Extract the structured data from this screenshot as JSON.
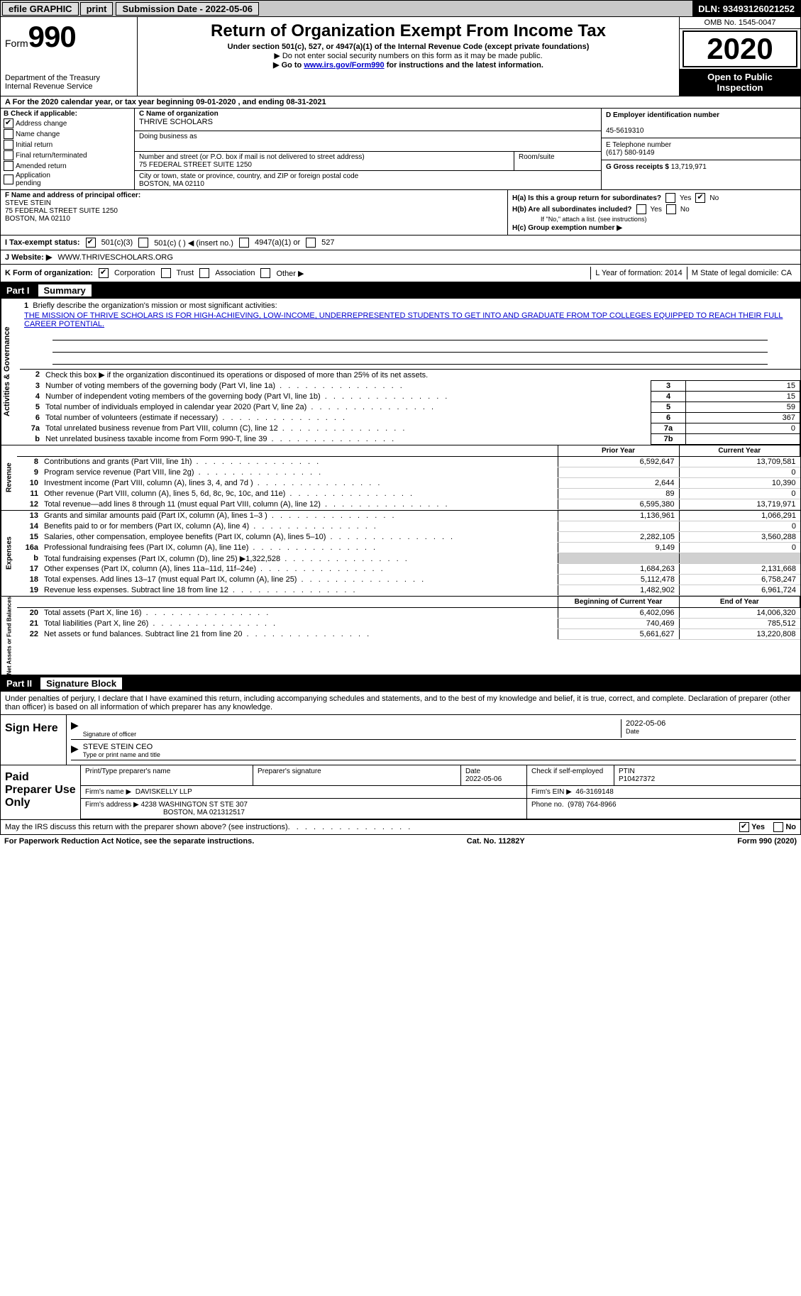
{
  "topbar": {
    "efile": "efile GRAPHIC",
    "print": "print",
    "submission_label": "Submission Date - 2022-05-06",
    "dln": "DLN: 93493126021252"
  },
  "header": {
    "form_word": "Form",
    "form_num": "990",
    "dept1": "Department of the Treasury",
    "dept2": "Internal Revenue Service",
    "title": "Return of Organization Exempt From Income Tax",
    "sub1": "Under section 501(c), 527, or 4947(a)(1) of the Internal Revenue Code (except private foundations)",
    "sub2": "▶ Do not enter social security numbers on this form as it may be made public.",
    "sub3a": "▶ Go to ",
    "sub3_link": "www.irs.gov/Form990",
    "sub3b": " for instructions and the latest information.",
    "omb": "OMB No. 1545-0047",
    "year": "2020",
    "open1": "Open to Public",
    "open2": "Inspection"
  },
  "row_a": "For the 2020 calendar year, or tax year beginning 09-01-2020   , and ending 08-31-2021",
  "col_b": {
    "hdr": "B Check if applicable:",
    "addr_change": "Address change",
    "name_change": "Name change",
    "initial": "Initial return",
    "final": "Final return/terminated",
    "amended": "Amended return",
    "app_pending1": "Application",
    "app_pending2": "pending"
  },
  "col_c": {
    "name_lbl": "C Name of organization",
    "name_val": "THRIVE SCHOLARS",
    "dba_lbl": "Doing business as",
    "addr_lbl": "Number and street (or P.O. box if mail is not delivered to street address)",
    "addr_val": "75 FEDERAL STREET SUITE 1250",
    "room_lbl": "Room/suite",
    "city_lbl": "City or town, state or province, country, and ZIP or foreign postal code",
    "city_val": "BOSTON, MA  02110"
  },
  "col_de": {
    "d_lbl": "D Employer identification number",
    "d_val": "45-5619310",
    "e_lbl": "E Telephone number",
    "e_val": "(617) 580-9149",
    "g_lbl": "G Gross receipts $ ",
    "g_val": "13,719,971"
  },
  "row_f": {
    "lbl": "F Name and address of principal officer:",
    "name": "STEVE STEIN",
    "addr": "75 FEDERAL STREET SUITE 1250",
    "city": "BOSTON, MA  02110"
  },
  "row_h": {
    "ha": "H(a)  Is this a group return for subordinates?",
    "hb": "H(b)  Are all subordinates included?",
    "hb_note": "If \"No,\" attach a list. (see instructions)",
    "hc": "H(c)  Group exemption number ▶",
    "yes": "Yes",
    "no": "No"
  },
  "row_i": {
    "lbl": "I   Tax-exempt status:",
    "o1": "501(c)(3)",
    "o2": "501(c) (  ) ◀ (insert no.)",
    "o3": "4947(a)(1) or",
    "o4": "527"
  },
  "row_j": {
    "lbl": "J   Website: ▶",
    "val": "WWW.THRIVESCHOLARS.ORG"
  },
  "row_k": {
    "lbl": "K Form of organization:",
    "corp": "Corporation",
    "trust": "Trust",
    "assoc": "Association",
    "other": "Other ▶",
    "l": "L Year of formation: 2014",
    "m": "M State of legal domicile: CA"
  },
  "part1": {
    "pn": "Part I",
    "pt": "Summary",
    "side_ag": "Activities & Governance",
    "line1": "Briefly describe the organization's mission or most significant activities:",
    "mission": "THE MISSION OF THRIVE SCHOLARS IS FOR HIGH-ACHIEVING, LOW-INCOME, UNDERREPRESENTED STUDENTS TO GET INTO AND GRADUATE FROM TOP COLLEGES EQUIPPED TO REACH THEIR FULL CAREER POTENTIAL.",
    "line2": "Check this box ▶       if the organization discontinued its operations or disposed of more than 25% of its net assets.",
    "rows_ag": [
      {
        "n": "3",
        "d": "Number of voting members of the governing body (Part VI, line 1a)",
        "b": "3",
        "v": "15"
      },
      {
        "n": "4",
        "d": "Number of independent voting members of the governing body (Part VI, line 1b)",
        "b": "4",
        "v": "15"
      },
      {
        "n": "5",
        "d": "Total number of individuals employed in calendar year 2020 (Part V, line 2a)",
        "b": "5",
        "v": "59"
      },
      {
        "n": "6",
        "d": "Total number of volunteers (estimate if necessary)",
        "b": "6",
        "v": "367"
      },
      {
        "n": "7a",
        "d": "Total unrelated business revenue from Part VIII, column (C), line 12",
        "b": "7a",
        "v": "0"
      },
      {
        "n": "b",
        "d": "Net unrelated business taxable income from Form 990-T, line 39",
        "b": "7b",
        "v": ""
      }
    ],
    "hdr_py": "Prior Year",
    "hdr_cy": "Current Year",
    "side_rev": "Revenue",
    "rows_rev": [
      {
        "n": "8",
        "d": "Contributions and grants (Part VIII, line 1h)",
        "py": "6,592,647",
        "cy": "13,709,581"
      },
      {
        "n": "9",
        "d": "Program service revenue (Part VIII, line 2g)",
        "py": "",
        "cy": "0"
      },
      {
        "n": "10",
        "d": "Investment income (Part VIII, column (A), lines 3, 4, and 7d )",
        "py": "2,644",
        "cy": "10,390"
      },
      {
        "n": "11",
        "d": "Other revenue (Part VIII, column (A), lines 5, 6d, 8c, 9c, 10c, and 11e)",
        "py": "89",
        "cy": "0"
      },
      {
        "n": "12",
        "d": "Total revenue—add lines 8 through 11 (must equal Part VIII, column (A), line 12)",
        "py": "6,595,380",
        "cy": "13,719,971"
      }
    ],
    "side_exp": "Expenses",
    "rows_exp": [
      {
        "n": "13",
        "d": "Grants and similar amounts paid (Part IX, column (A), lines 1–3 )",
        "py": "1,136,961",
        "cy": "1,066,291"
      },
      {
        "n": "14",
        "d": "Benefits paid to or for members (Part IX, column (A), line 4)",
        "py": "",
        "cy": "0"
      },
      {
        "n": "15",
        "d": "Salaries, other compensation, employee benefits (Part IX, column (A), lines 5–10)",
        "py": "2,282,105",
        "cy": "3,560,288"
      },
      {
        "n": "16a",
        "d": "Professional fundraising fees (Part IX, column (A), line 11e)",
        "py": "9,149",
        "cy": "0"
      },
      {
        "n": "b",
        "d": "Total fundraising expenses (Part IX, column (D), line 25) ▶1,322,528",
        "py": "shade",
        "cy": "shade"
      },
      {
        "n": "17",
        "d": "Other expenses (Part IX, column (A), lines 11a–11d, 11f–24e)",
        "py": "1,684,263",
        "cy": "2,131,668"
      },
      {
        "n": "18",
        "d": "Total expenses. Add lines 13–17 (must equal Part IX, column (A), line 25)",
        "py": "5,112,478",
        "cy": "6,758,247"
      },
      {
        "n": "19",
        "d": "Revenue less expenses. Subtract line 18 from line 12",
        "py": "1,482,902",
        "cy": "6,961,724"
      }
    ],
    "hdr_boy": "Beginning of Current Year",
    "hdr_eoy": "End of Year",
    "side_na": "Net Assets or Fund Balances",
    "rows_na": [
      {
        "n": "20",
        "d": "Total assets (Part X, line 16)",
        "py": "6,402,096",
        "cy": "14,006,320"
      },
      {
        "n": "21",
        "d": "Total liabilities (Part X, line 26)",
        "py": "740,469",
        "cy": "785,512"
      },
      {
        "n": "22",
        "d": "Net assets or fund balances. Subtract line 21 from line 20",
        "py": "5,661,627",
        "cy": "13,220,808"
      }
    ]
  },
  "part2": {
    "pn": "Part II",
    "pt": "Signature Block",
    "penalty": "Under penalties of perjury, I declare that I have examined this return, including accompanying schedules and statements, and to the best of my knowledge and belief, it is true, correct, and complete. Declaration of preparer (other than officer) is based on all information of which preparer has any knowledge.",
    "sign_here": "Sign Here",
    "sig_officer_lbl": "Signature of officer",
    "sig_date": "2022-05-06",
    "sig_date_lbl": "Date",
    "sig_name": "STEVE STEIN  CEO",
    "sig_name_lbl": "Type or print name and title",
    "paid_prep": "Paid Preparer Use Only",
    "pt_name_lbl": "Print/Type preparer's name",
    "pt_sig_lbl": "Preparer's signature",
    "pt_date_lbl": "Date",
    "pt_date": "2022-05-06",
    "pt_check_lbl": "Check        if self-employed",
    "ptin_lbl": "PTIN",
    "ptin": "P10427372",
    "firm_name_lbl": "Firm's name     ▶",
    "firm_name": "DAVISKELLY LLP",
    "firm_ein_lbl": "Firm's EIN ▶",
    "firm_ein": "46-3169148",
    "firm_addr_lbl": "Firm's address ▶",
    "firm_addr1": "4238 WASHINGTON ST STE 307",
    "firm_addr2": "BOSTON, MA  021312517",
    "phone_lbl": "Phone no.",
    "phone": "(978) 764-8966",
    "irs_discuss": "May the IRS discuss this return with the preparer shown above? (see instructions)",
    "footer_l": "For Paperwork Reduction Act Notice, see the separate instructions.",
    "footer_m": "Cat. No. 11282Y",
    "footer_r": "Form 990 (2020)"
  }
}
